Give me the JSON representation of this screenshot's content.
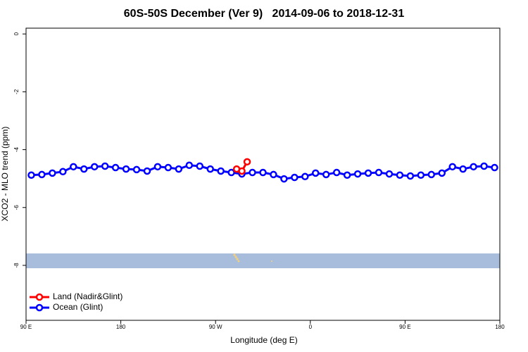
{
  "chart_data": {
    "type": "line",
    "title": "60S-50S December (Ver 9)   2014-09-06 to 2018-12-31",
    "xlabel": "Longitude (deg E)",
    "ylabel": "XCO2 - MLO trend (ppm)",
    "xlim": [
      90,
      540
    ],
    "xticks": [
      {
        "value": 90,
        "label": "90 E"
      },
      {
        "value": 180,
        "label": "180"
      },
      {
        "value": 270,
        "label": "90 W"
      },
      {
        "value": 360,
        "label": "0"
      },
      {
        "value": 450,
        "label": "90 E"
      },
      {
        "value": 540,
        "label": "180"
      }
    ],
    "ylim": [
      -9.9,
      0.2
    ],
    "yticks": [
      0,
      -2,
      -4,
      -6,
      -8
    ],
    "legend": "bottom-left",
    "series": [
      {
        "name": "Land (Nadir&Glint)",
        "color": "#ff0000",
        "x": [
          290,
          295,
          300
        ],
        "values": [
          -4.67,
          -4.74,
          -4.42
        ]
      },
      {
        "name": "Ocean (Glint)",
        "color": "#0000ff",
        "x": [
          95,
          105,
          115,
          125,
          135,
          145,
          155,
          165,
          175,
          185,
          195,
          205,
          215,
          225,
          235,
          245,
          255,
          265,
          275,
          285,
          295,
          305,
          315,
          325,
          335,
          345,
          355,
          365,
          375,
          385,
          395,
          405,
          415,
          425,
          435,
          445,
          455,
          465,
          475,
          485,
          495,
          505,
          515,
          525,
          535
        ],
        "values": [
          -4.88,
          -4.86,
          -4.81,
          -4.76,
          -4.59,
          -4.67,
          -4.59,
          -4.57,
          -4.62,
          -4.67,
          -4.69,
          -4.74,
          -4.59,
          -4.62,
          -4.67,
          -4.54,
          -4.57,
          -4.67,
          -4.74,
          -4.79,
          -4.84,
          -4.79,
          -4.79,
          -4.86,
          -5.01,
          -4.96,
          -4.93,
          -4.81,
          -4.86,
          -4.79,
          -4.88,
          -4.84,
          -4.81,
          -4.79,
          -4.84,
          -4.88,
          -4.91,
          -4.88,
          -4.86,
          -4.81,
          -4.59,
          -4.67,
          -4.59,
          -4.57,
          -4.62
        ]
      }
    ]
  }
}
